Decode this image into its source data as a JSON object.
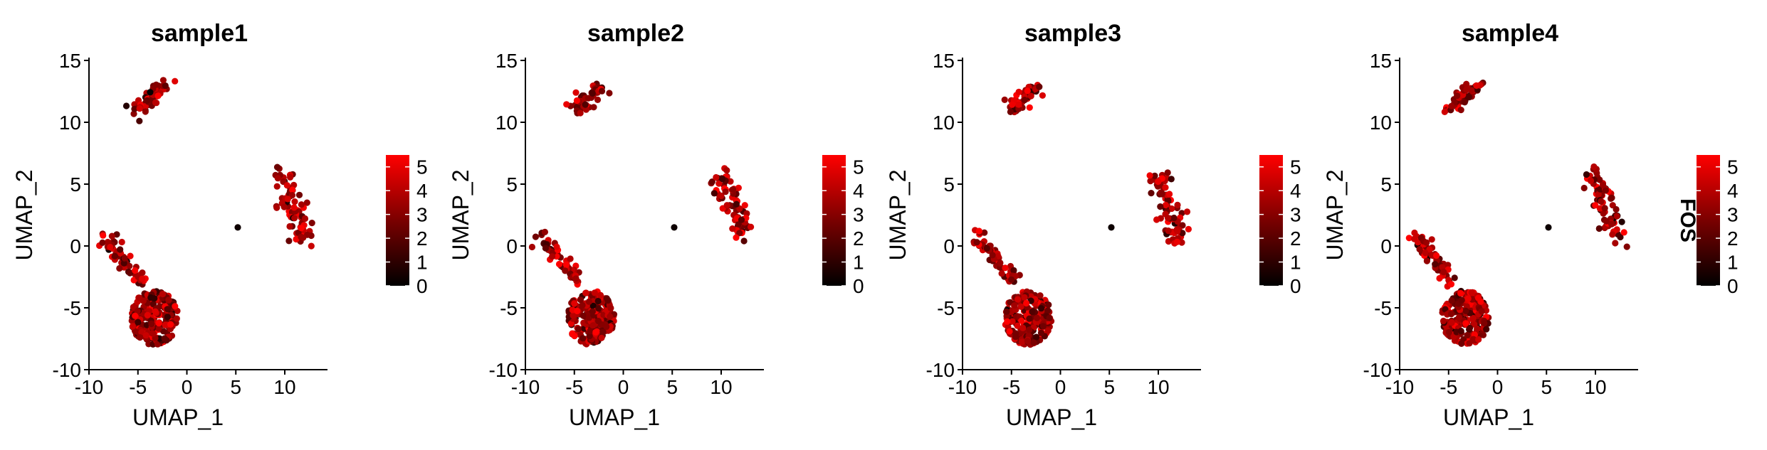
{
  "chart_data": {
    "type": "scatter",
    "feature": "FOS",
    "legend_title": "FOS",
    "color_low": "#000000",
    "color_mid": "#7a0000",
    "color_high": "#ff0000",
    "colorbar_ticks": [
      "0",
      "1",
      "2",
      "3",
      "4",
      "5"
    ],
    "color_range": [
      0,
      5.5
    ],
    "xlabel": "UMAP_1",
    "ylabel": "UMAP_2",
    "xlim": [
      -10,
      14
    ],
    "ylim": [
      -10,
      15
    ],
    "xticks": [
      -10,
      -5,
      0,
      5,
      10
    ],
    "yticks": [
      -10,
      -5,
      0,
      5,
      10,
      15
    ],
    "xtick_labels": [
      "-10",
      "-5",
      "0",
      "5",
      "10"
    ],
    "ytick_labels": [
      "-10",
      "-5",
      "0",
      "5",
      "10",
      "15"
    ],
    "clusters_approx": [
      {
        "name": "top",
        "center": [
          -3.5,
          12.2
        ],
        "spread": [
          1.6,
          1.1
        ]
      },
      {
        "name": "right",
        "center": [
          10.5,
          4.0
        ],
        "spread": [
          1.8,
          2.4
        ]
      },
      {
        "name": "lower-left arm",
        "center": [
          -6.5,
          -1.5
        ],
        "spread": [
          2.0,
          2.0
        ]
      },
      {
        "name": "lower-left body",
        "center": [
          -3.5,
          -5.8
        ],
        "spread": [
          2.3,
          2.0
        ]
      },
      {
        "name": "single",
        "center": [
          5.2,
          1.5
        ],
        "spread": [
          0,
          0
        ]
      }
    ],
    "panels": [
      {
        "title": "sample1"
      },
      {
        "title": "sample2"
      },
      {
        "title": "sample3"
      },
      {
        "title": "sample4"
      }
    ]
  }
}
